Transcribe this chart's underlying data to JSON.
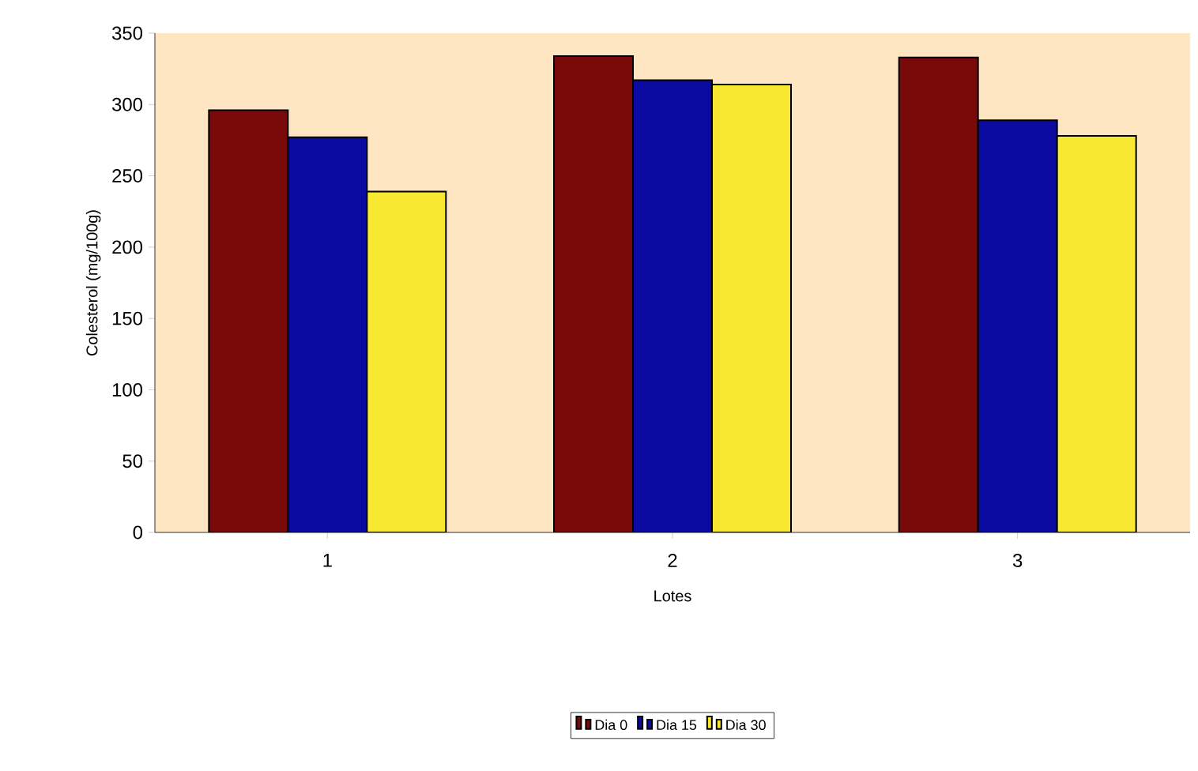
{
  "chart_data": {
    "type": "bar",
    "xlabel": "Lotes",
    "ylabel": "Colesterol (mg/100g)",
    "categories": [
      "1",
      "2",
      "3"
    ],
    "series": [
      {
        "name": "Dia 0",
        "color": "#7a0a0a",
        "values": [
          296,
          334,
          333
        ]
      },
      {
        "name": "Dia 15",
        "color": "#0a0aa0",
        "values": [
          277,
          317,
          289
        ]
      },
      {
        "name": "Dia 30",
        "color": "#f8e830",
        "values": [
          239,
          314,
          278
        ]
      }
    ],
    "ylim": [
      0,
      350
    ],
    "yticks": [
      0,
      50,
      100,
      150,
      200,
      250,
      300,
      350
    ],
    "grid": false,
    "legend": "bottom"
  }
}
